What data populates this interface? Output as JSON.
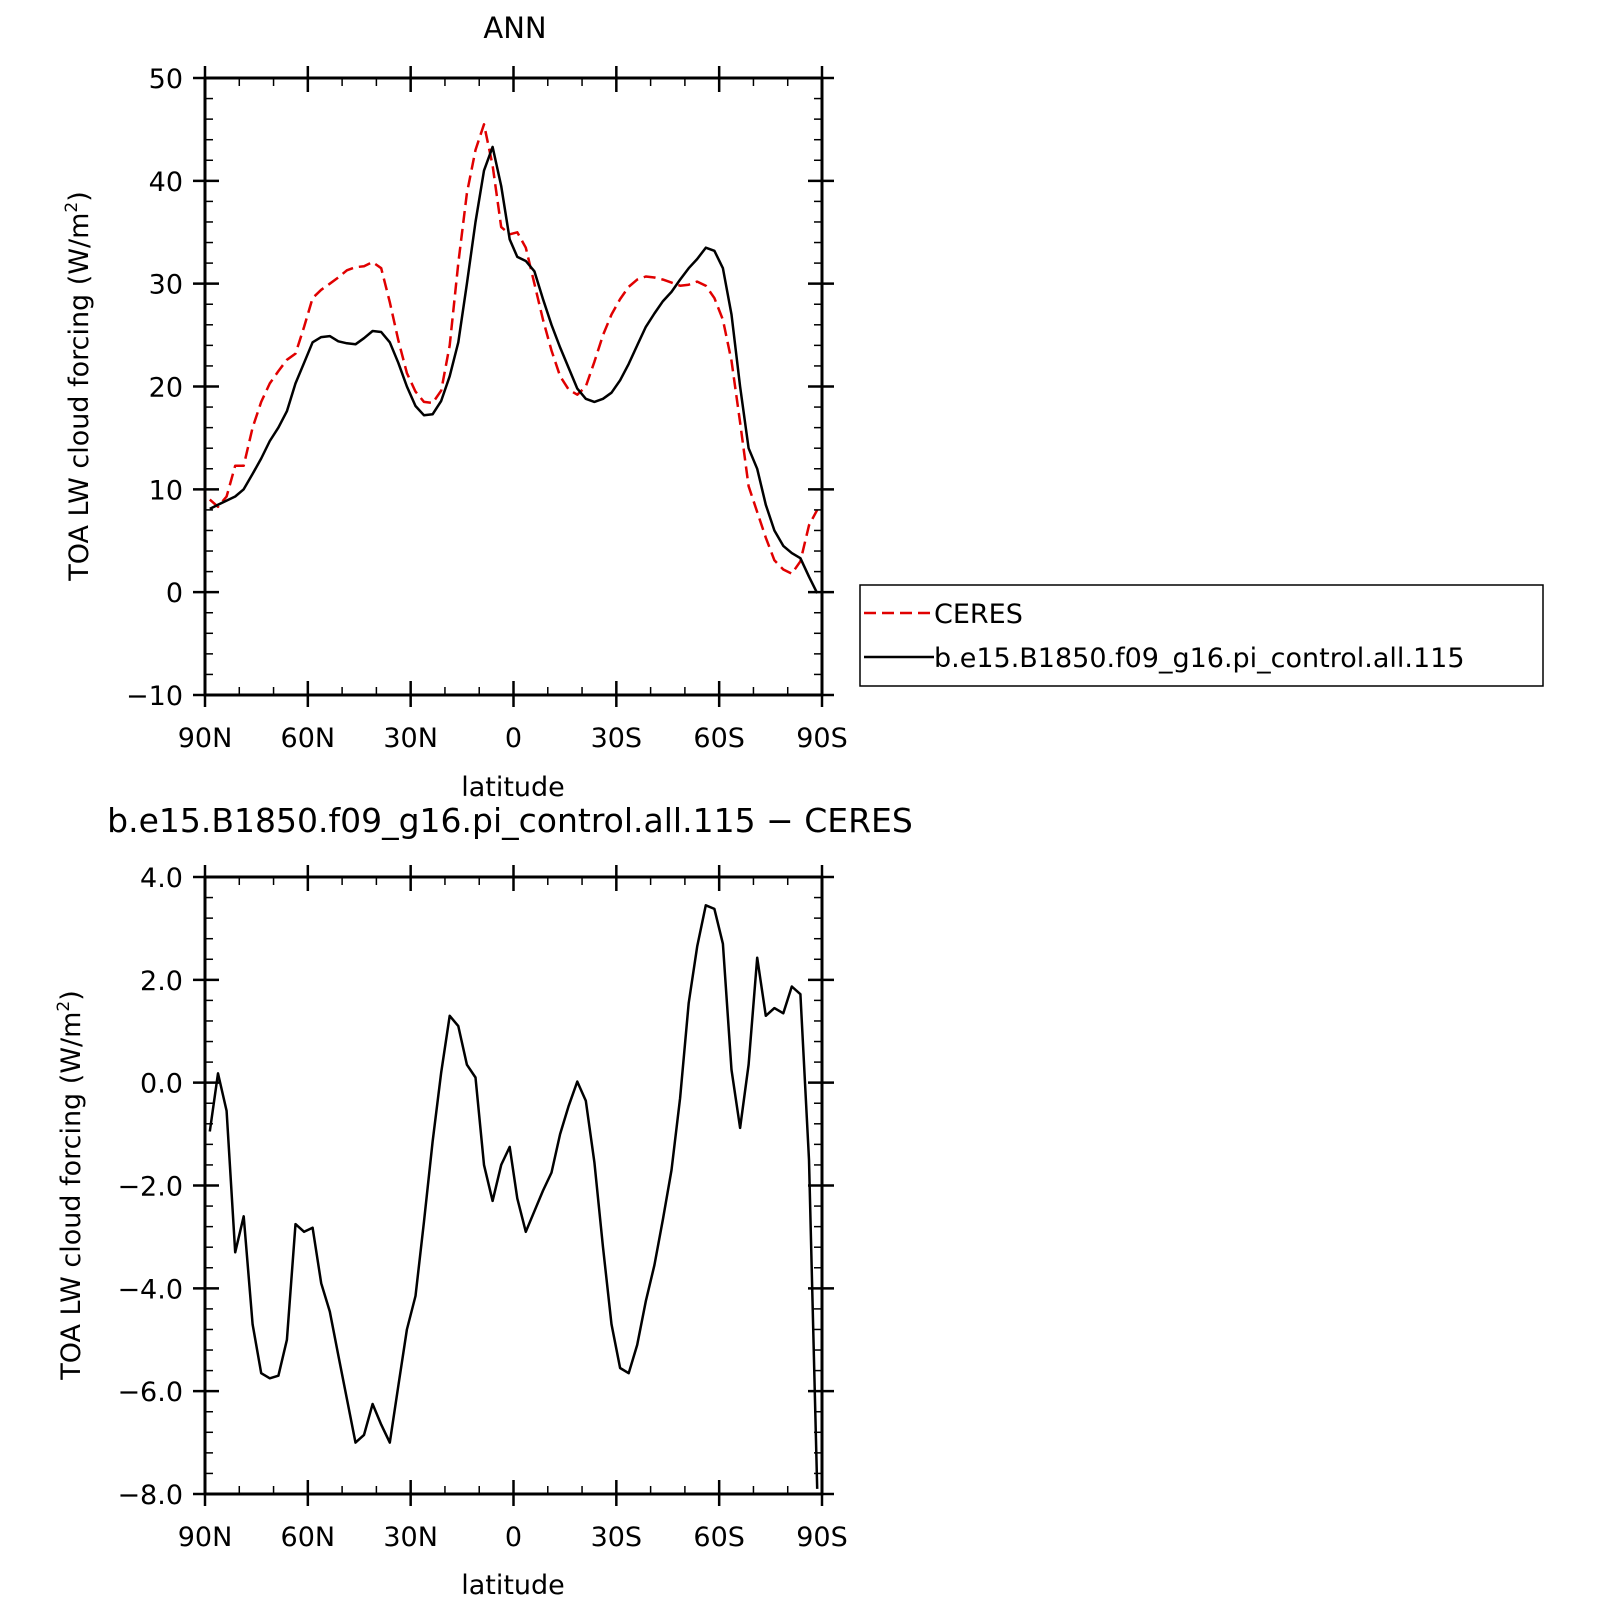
{
  "chart_data": [
    {
      "type": "line",
      "title": "ANN",
      "xlabel": "latitude",
      "ylabel": "TOA LW cloud forcing (W/m",
      "ylabel_sup": "2",
      "ylabel_close": ")",
      "xlim": [
        90,
        -90
      ],
      "ylim": [
        -10,
        50
      ],
      "yticks": [
        -10,
        0,
        10,
        20,
        30,
        40,
        50
      ],
      "ytick_labels": [
        "−10",
        "0",
        "10",
        "20",
        "30",
        "40",
        "50"
      ],
      "xticks": [
        90,
        60,
        30,
        0,
        -30,
        -60,
        -90
      ],
      "xtick_labels": [
        "90N",
        "60N",
        "30N",
        "0",
        "30S",
        "60S",
        "90S"
      ],
      "legend": "right",
      "series": [
        {
          "name": "CERES",
          "color": "#e00000",
          "dash": "dashed",
          "x": [
            88.6,
            86.2,
            83.7,
            81.2,
            78.7,
            76.1,
            73.6,
            71.1,
            68.6,
            66.1,
            63.6,
            61.1,
            58.6,
            56.1,
            53.6,
            51.1,
            48.6,
            46.1,
            43.6,
            41.1,
            38.6,
            36.1,
            33.6,
            31.1,
            28.6,
            26.1,
            23.6,
            21.1,
            18.6,
            16.1,
            13.6,
            11.1,
            8.6,
            6.1,
            3.6,
            1.1,
            -1.1,
            -3.6,
            -6.1,
            -8.6,
            -11.1,
            -13.6,
            -16.1,
            -18.6,
            -21.1,
            -23.6,
            -26.1,
            -28.6,
            -31.1,
            -33.6,
            -36.1,
            -38.6,
            -41.1,
            -43.6,
            -46.1,
            -48.6,
            -51.1,
            -53.6,
            -56.1,
            -58.6,
            -61.1,
            -63.6,
            -66.1,
            -68.6,
            -71.1,
            -73.6,
            -76.1,
            -78.7,
            -81.2,
            -83.7,
            -86.2,
            -88.6
          ],
          "y": [
            9.0,
            8.3,
            9.3,
            12.3,
            12.3,
            16.0,
            18.5,
            20.3,
            21.5,
            22.6,
            23.2,
            25.8,
            28.6,
            29.4,
            30.0,
            30.6,
            31.3,
            31.6,
            31.7,
            32.1,
            31.5,
            28.2,
            24.5,
            21.3,
            19.5,
            18.5,
            18.4,
            19.6,
            24.0,
            32.0,
            38.8,
            43.0,
            45.5,
            41.5,
            35.5,
            34.8,
            35.0,
            33.5,
            30.0,
            26.5,
            23.5,
            21.0,
            19.7,
            19.2,
            20.0,
            22.4,
            25.0,
            27.0,
            28.5,
            29.7,
            30.4,
            30.7,
            30.6,
            30.4,
            30.1,
            29.8,
            29.9,
            30.2,
            29.8,
            28.6,
            26.5,
            22.5,
            16.5,
            10.3,
            7.8,
            5.3,
            3.1,
            2.2,
            1.8,
            3.0,
            6.5,
            8.0
          ]
        },
        {
          "name": "b.e15.B1850.f09_g16.pi_control.all.115",
          "color": "#000000",
          "dash": "solid",
          "x": [
            88.6,
            86.2,
            83.7,
            81.2,
            78.7,
            76.1,
            73.6,
            71.1,
            68.6,
            66.1,
            63.6,
            61.1,
            58.6,
            56.1,
            53.6,
            51.1,
            48.6,
            46.1,
            43.6,
            41.1,
            38.6,
            36.1,
            33.6,
            31.1,
            28.6,
            26.1,
            23.6,
            21.1,
            18.6,
            16.1,
            13.6,
            11.1,
            8.6,
            6.1,
            3.6,
            1.1,
            -1.1,
            -3.6,
            -6.1,
            -8.6,
            -11.1,
            -13.6,
            -16.1,
            -18.6,
            -21.1,
            -23.6,
            -26.1,
            -28.6,
            -31.1,
            -33.6,
            -36.1,
            -38.6,
            -41.1,
            -43.6,
            -46.1,
            -48.6,
            -51.1,
            -53.6,
            -56.1,
            -58.6,
            -61.1,
            -63.6,
            -66.1,
            -68.6,
            -71.1,
            -73.6,
            -76.1,
            -78.7,
            -81.2,
            -83.7,
            -86.2,
            -88.6
          ],
          "y": [
            8.1,
            8.5,
            8.9,
            9.3,
            10.0,
            11.5,
            13.0,
            14.7,
            16.0,
            17.6,
            20.3,
            22.3,
            24.3,
            24.8,
            24.9,
            24.4,
            24.2,
            24.1,
            24.7,
            25.4,
            25.3,
            24.3,
            22.3,
            20.0,
            18.1,
            17.2,
            17.3,
            18.6,
            21.0,
            24.3,
            30.0,
            36.0,
            41.0,
            43.3,
            39.5,
            34.3,
            32.6,
            32.2,
            31.2,
            28.5,
            26.0,
            23.8,
            21.8,
            19.8,
            18.8,
            18.5,
            18.8,
            19.4,
            20.6,
            22.2,
            24.0,
            25.8,
            27.1,
            28.3,
            29.2,
            30.4,
            31.5,
            32.4,
            33.5,
            33.2,
            31.5,
            27.0,
            20.0,
            14.0,
            12.0,
            8.5,
            6.0,
            4.5,
            3.8,
            3.3,
            1.5,
            -0.1
          ]
        }
      ]
    },
    {
      "type": "line",
      "title": "b.e15.B1850.f09_g16.pi_control.all.115 − CERES",
      "xlabel": "latitude",
      "ylabel": "TOA LW cloud forcing (W/m",
      "ylabel_sup": "2",
      "ylabel_close": ")",
      "xlim": [
        90,
        -90
      ],
      "ylim": [
        -8,
        4
      ],
      "yticks": [
        -8,
        -6,
        -4,
        -2,
        0,
        2,
        4
      ],
      "ytick_labels": [
        "−8.0",
        "−6.0",
        "−4.0",
        "−2.0",
        "0.0",
        "2.0",
        "4.0"
      ],
      "xticks": [
        90,
        60,
        30,
        0,
        -30,
        -60,
        -90
      ],
      "xtick_labels": [
        "90N",
        "60N",
        "30N",
        "0",
        "30S",
        "60S",
        "90S"
      ],
      "series": [
        {
          "name": "",
          "color": "#000000",
          "dash": "solid",
          "x": [
            88.6,
            86.2,
            83.7,
            81.2,
            78.7,
            76.1,
            73.6,
            71.1,
            68.6,
            66.1,
            63.6,
            61.1,
            58.6,
            56.1,
            53.6,
            51.1,
            48.6,
            46.1,
            43.6,
            41.1,
            38.6,
            36.1,
            33.6,
            31.1,
            28.6,
            26.1,
            23.6,
            21.1,
            18.6,
            16.1,
            13.6,
            11.1,
            8.6,
            6.1,
            3.6,
            1.1,
            -1.1,
            -3.6,
            -6.1,
            -8.6,
            -11.1,
            -13.6,
            -16.1,
            -18.6,
            -21.1,
            -23.6,
            -26.1,
            -28.6,
            -31.1,
            -33.6,
            -36.1,
            -38.6,
            -41.1,
            -43.6,
            -46.1,
            -48.6,
            -51.1,
            -53.6,
            -56.1,
            -58.6,
            -61.1,
            -63.6,
            -66.1,
            -68.6,
            -71.1,
            -73.6,
            -76.1,
            -78.7,
            -81.2,
            -83.7,
            -86.2,
            -88.6
          ],
          "y": [
            -0.95,
            0.18,
            -0.55,
            -3.3,
            -2.6,
            -4.7,
            -5.65,
            -5.75,
            -5.7,
            -5.0,
            -2.75,
            -2.9,
            -2.82,
            -3.9,
            -4.45,
            -5.3,
            -6.15,
            -7.0,
            -6.85,
            -6.25,
            -6.65,
            -7.0,
            -5.9,
            -4.8,
            -4.15,
            -2.7,
            -1.15,
            0.2,
            1.3,
            1.1,
            0.35,
            0.1,
            -1.6,
            -2.3,
            -1.6,
            -1.25,
            -2.25,
            -2.9,
            -2.5,
            -2.1,
            -1.75,
            -1.0,
            -0.45,
            0.02,
            -0.35,
            -1.55,
            -3.2,
            -4.7,
            -5.55,
            -5.65,
            -5.1,
            -4.25,
            -3.55,
            -2.65,
            -1.7,
            -0.3,
            1.55,
            2.65,
            3.45,
            3.38,
            2.7,
            0.25,
            -0.88,
            0.35,
            2.43,
            1.3,
            1.45,
            1.35,
            1.87,
            1.72,
            -1.5,
            -7.9
          ]
        }
      ]
    }
  ]
}
